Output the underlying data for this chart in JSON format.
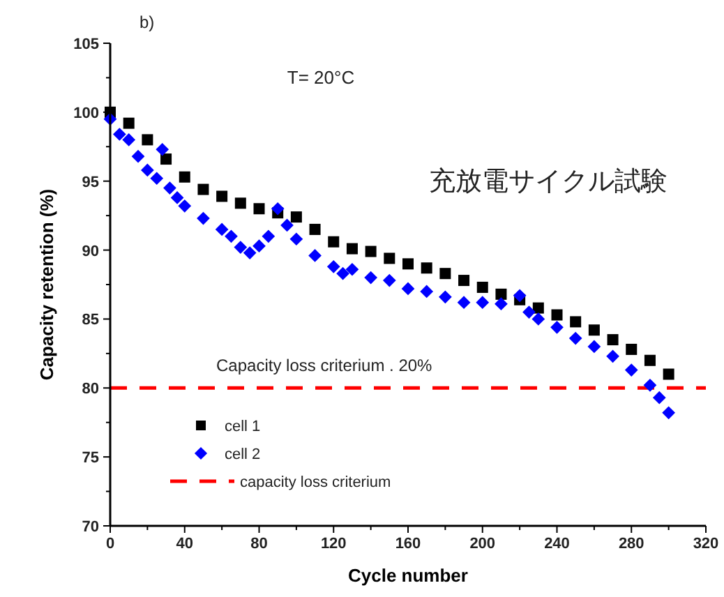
{
  "chart_data": {
    "type": "scatter",
    "xlabel": "Cycle number",
    "ylabel": "Capacity retention (%)",
    "annotations": [
      "b)",
      "T= 20°C",
      "充放電サイクル試験",
      {
        "text": "Capacity loss criterium . 20%",
        "y": 80
      }
    ],
    "xlim": [
      0,
      320
    ],
    "ylim": [
      70,
      105
    ],
    "xticks": [
      0,
      {
        "value": 20,
        "label": null
      },
      40,
      {
        "value": 60,
        "label": null
      },
      80,
      {
        "value": 100,
        "label": null
      },
      120,
      {
        "value": 140,
        "label": null
      },
      160,
      {
        "value": 180,
        "label": null
      },
      200,
      {
        "value": 220,
        "label": null
      },
      240,
      {
        "value": 260,
        "label": null
      },
      280,
      {
        "value": 300,
        "label": null
      },
      320
    ],
    "yticks": [
      70,
      {
        "value": 72.5,
        "label": null
      },
      75,
      {
        "value": 77.5,
        "label": null
      },
      80,
      {
        "value": 82.5,
        "label": null
      },
      85,
      {
        "value": 87.5,
        "label": null
      },
      90,
      {
        "value": 92.5,
        "label": null
      },
      95,
      {
        "value": 97.5,
        "label": null
      },
      100,
      {
        "value": 102.5,
        "label": null
      },
      105
    ],
    "grid": false,
    "legend": "bottom left",
    "ref_lines": [
      {
        "axis": "y",
        "value": 80,
        "label": "capacity loss criterium",
        "color": "#ff0000",
        "line_style": "dashed"
      }
    ],
    "series": [
      {
        "name": "cell 1",
        "color": "#000000",
        "marker": "square",
        "x": [
          0,
          10,
          20,
          30,
          40,
          50,
          60,
          70,
          80,
          90,
          100,
          110,
          120,
          130,
          140,
          150,
          160,
          170,
          180,
          190,
          200,
          210,
          220,
          230,
          240,
          250,
          260,
          270,
          280,
          290,
          300
        ],
        "values": [
          100,
          99.2,
          98,
          96.6,
          95.3,
          94.4,
          93.9,
          93.4,
          93,
          92.7,
          92.4,
          91.5,
          90.6,
          90.1,
          89.9,
          89.4,
          89,
          88.7,
          88.3,
          87.8,
          87.3,
          86.8,
          86.4,
          85.8,
          85.3,
          84.8,
          84.2,
          83.5,
          82.8,
          82,
          81
        ]
      },
      {
        "name": "cell 2",
        "color": "#0000ff",
        "marker": "diamond",
        "x": [
          0,
          5,
          10,
          15,
          20,
          25,
          28,
          32,
          36,
          40,
          50,
          60,
          65,
          70,
          75,
          80,
          85,
          90,
          95,
          100,
          110,
          120,
          125,
          130,
          140,
          150,
          160,
          170,
          180,
          190,
          200,
          210,
          220,
          225,
          230,
          240,
          250,
          260,
          270,
          280,
          290,
          295,
          300
        ],
        "values": [
          99.5,
          98.4,
          98,
          96.8,
          95.8,
          95.2,
          97.3,
          94.5,
          93.8,
          93.2,
          92.3,
          91.5,
          91,
          90.2,
          89.8,
          90.3,
          91,
          93,
          91.8,
          90.8,
          89.6,
          88.8,
          88.3,
          88.6,
          88,
          87.8,
          87.2,
          87,
          86.6,
          86.2,
          86.2,
          86.1,
          86.7,
          85.5,
          85,
          84.4,
          83.6,
          83,
          82.3,
          81.3,
          80.2,
          79.3,
          78.2
        ]
      }
    ]
  }
}
